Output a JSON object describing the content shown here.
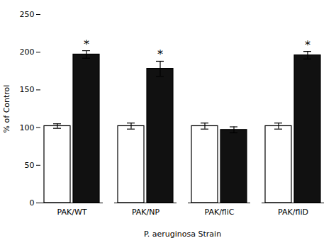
{
  "chart_data": {
    "type": "bar",
    "categories": [
      "PAK/WT",
      "PAK/NP",
      "PAK/fliC",
      "PAK/fliD"
    ],
    "series": [
      {
        "color": "#ffffff",
        "values": [
          102,
          102,
          102,
          102
        ],
        "errors": [
          3,
          4,
          4,
          4
        ]
      },
      {
        "color": "#111111",
        "values": [
          197,
          178,
          97,
          196
        ],
        "errors": [
          5,
          10,
          4,
          5
        ],
        "annotations": [
          "*",
          "*",
          null,
          "*"
        ]
      }
    ],
    "ylabel": "% of Control",
    "xlabel": "P. aeruginosa Strain",
    "ylim": [
      0,
      250
    ],
    "yticks": [
      0,
      50,
      100,
      150,
      200,
      250
    ],
    "grid": false
  }
}
